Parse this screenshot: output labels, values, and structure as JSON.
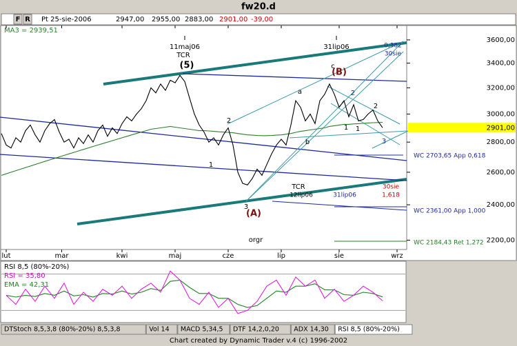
{
  "window": {
    "title": "fw20.d",
    "footer": "Chart created by Dynamic Trader v.4  (c) 1996-2002"
  },
  "toolbar": {
    "buttons": [
      "F",
      "R"
    ],
    "date": "Pt 25-sie-2006",
    "open": "2947,00",
    "high": "2955,00",
    "low": "2883,00",
    "close": "2901,00",
    "change": "-39,00"
  },
  "tabs": [
    "DTStoch 8,5,3,8 (80%-20%) 8,5,3,8",
    "Vol 14",
    "MACD 5,34,5",
    "DTF 14,2,0,20",
    "ADX 14,30",
    "RSI 8,5 (80%-20%)"
  ],
  "chart_data": [
    {
      "type": "line",
      "log": true,
      "ma_label": "MA3 = 2939,51",
      "last_price": {
        "value": 2901,
        "label": "2901,00"
      },
      "ylim": [
        2150,
        3730
      ],
      "yticks": [
        {
          "value": 2200,
          "label": "2200,00"
        },
        {
          "value": 2400,
          "label": "2400,00"
        },
        {
          "value": 2600,
          "label": "2600,00"
        },
        {
          "value": 2800,
          "label": "2800,00"
        },
        {
          "value": 3000,
          "label": "3000,00"
        },
        {
          "value": 3200,
          "label": "3200,00"
        },
        {
          "value": 3400,
          "label": "3400,00"
        },
        {
          "value": 3600,
          "label": "3600,00"
        }
      ],
      "xlim": [
        0,
        84
      ],
      "xticks": [
        {
          "value": 1,
          "label": "lut"
        },
        {
          "value": 12.5,
          "label": "mar"
        },
        {
          "value": 25,
          "label": "kwi"
        },
        {
          "value": 36,
          "label": "maj"
        },
        {
          "value": 47,
          "label": "cze"
        },
        {
          "value": 58,
          "label": "lip"
        },
        {
          "value": 70,
          "label": "sie"
        },
        {
          "value": 82,
          "label": "wrz"
        }
      ],
      "series": [
        {
          "name": "fw20.d",
          "color": "#000000",
          "values": [
            2860,
            2780,
            2760,
            2830,
            2800,
            2880,
            2920,
            2850,
            2800,
            2880,
            2930,
            2960,
            2870,
            2800,
            2820,
            2760,
            2830,
            2790,
            2850,
            2800,
            2880,
            2920,
            2840,
            2900,
            2860,
            2930,
            2980,
            2950,
            3000,
            3040,
            3100,
            3200,
            3160,
            3230,
            3180,
            3260,
            3240,
            3300,
            3250,
            3120,
            3000,
            2920,
            2870,
            2800,
            2830,
            2780,
            2850,
            2900,
            2780,
            2600,
            2530,
            2520,
            2560,
            2620,
            2580,
            2650,
            2720,
            2780,
            2820,
            2780,
            2920,
            3100,
            3050,
            2950,
            3000,
            2930,
            3100,
            3150,
            3230,
            3150,
            3050,
            3100,
            2980,
            3070,
            2950,
            2960,
            3000,
            3030,
            2950,
            2901
          ]
        },
        {
          "name": "MA3",
          "color": "#2e7d2e",
          "values": [
            2580,
            2590,
            2600,
            2610,
            2620,
            2630,
            2640,
            2650,
            2660,
            2670,
            2680,
            2690,
            2700,
            2710,
            2720,
            2730,
            2740,
            2750,
            2760,
            2770,
            2780,
            2790,
            2800,
            2810,
            2820,
            2830,
            2840,
            2850,
            2860,
            2870,
            2880,
            2890,
            2895,
            2900,
            2905,
            2910,
            2905,
            2900,
            2895,
            2890,
            2885,
            2880,
            2880,
            2878,
            2875,
            2872,
            2870,
            2868,
            2865,
            2860,
            2855,
            2850,
            2848,
            2846,
            2845,
            2845,
            2846,
            2848,
            2850,
            2855,
            2860,
            2868,
            2875,
            2880,
            2885,
            2890,
            2895,
            2900,
            2910,
            2915,
            2920,
            2925,
            2925,
            2928,
            2930,
            2932,
            2935,
            2937,
            2938,
            2939.51
          ]
        }
      ],
      "annotations": [
        "11maj06",
        "TCR",
        "(5)",
        "31lip06",
        "(B)",
        "c",
        "a",
        "2",
        "1",
        "b",
        "2",
        "2",
        "1",
        "1",
        "3",
        "3",
        "(A)",
        "TCR",
        "12lip06",
        "31lip06",
        "30sie",
        "1,618",
        "0,382",
        "30sie",
        "orgr",
        "WC 2703,65 App 0,618",
        "WC 2361,00 App 1,000",
        "WC 2184,43 Ret 1,272"
      ]
    },
    {
      "type": "line",
      "title": "RSI 8,5 (80%-20%)",
      "rsi_label": "RSI = 35,80",
      "ema_label": "EMA = 42,31",
      "ylim": [
        0,
        100
      ],
      "yticks": [
        20,
        80
      ],
      "xlim": [
        0,
        42
      ],
      "series": [
        {
          "name": "RSI",
          "color": "#e020e0",
          "values": [
            45,
            30,
            55,
            35,
            60,
            40,
            65,
            30,
            50,
            35,
            55,
            45,
            60,
            40,
            55,
            65,
            50,
            85,
            70,
            40,
            30,
            50,
            25,
            40,
            15,
            20,
            35,
            60,
            70,
            45,
            75,
            60,
            70,
            40,
            55,
            35,
            45,
            60,
            50,
            35.8
          ]
        },
        {
          "name": "EMA",
          "color": "#208020",
          "values": [
            45,
            42,
            45,
            43,
            48,
            45,
            52,
            44,
            46,
            42,
            48,
            47,
            52,
            47,
            50,
            56,
            53,
            68,
            70,
            58,
            48,
            48,
            40,
            40,
            30,
            25,
            28,
            40,
            52,
            50,
            60,
            60,
            64,
            54,
            54,
            46,
            45,
            50,
            48,
            42.31
          ]
        }
      ]
    }
  ]
}
